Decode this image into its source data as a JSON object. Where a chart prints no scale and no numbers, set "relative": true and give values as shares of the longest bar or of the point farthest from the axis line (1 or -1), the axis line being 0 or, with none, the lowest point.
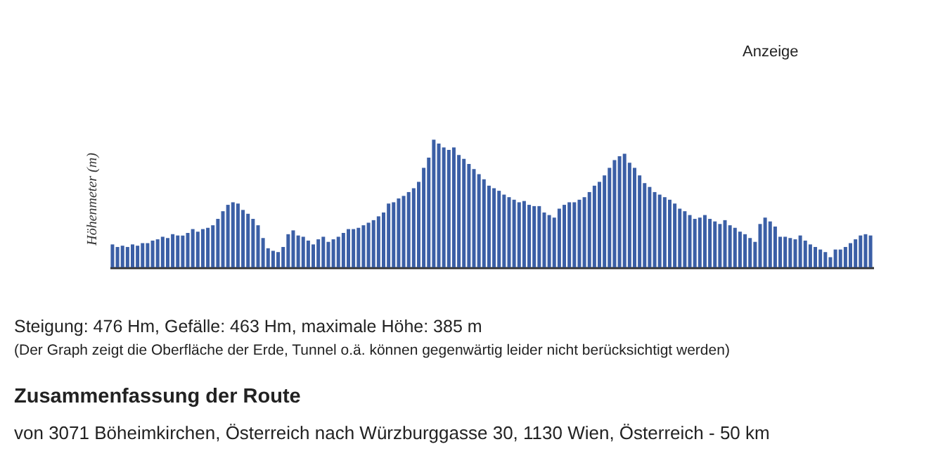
{
  "chart_data": {
    "type": "bar",
    "ylabel": "Höhenmeter (m)",
    "relative": true,
    "color": "#3b5fa6",
    "categories": [
      null,
      null,
      null,
      null,
      null,
      null,
      null,
      null,
      null,
      null,
      null,
      null,
      null,
      null,
      null,
      null,
      null,
      null,
      null,
      null,
      null,
      null,
      null,
      null,
      null,
      null,
      null,
      null,
      null,
      null,
      null,
      null,
      null,
      null,
      null,
      null,
      null,
      null,
      null,
      null,
      null,
      null,
      null,
      null,
      null,
      null,
      null,
      null,
      null,
      null,
      null,
      null,
      null,
      null,
      null,
      null,
      null,
      null,
      null,
      null,
      null,
      null,
      null,
      null,
      null,
      null,
      null,
      null,
      null,
      null,
      null,
      null,
      null,
      null,
      null,
      null,
      null,
      null,
      null,
      null,
      null,
      null,
      null,
      null,
      null,
      null,
      null,
      null,
      null,
      null,
      null,
      null,
      null,
      null,
      null,
      null,
      null,
      null,
      null,
      null,
      null,
      null,
      null,
      null,
      null,
      null,
      null,
      null,
      null,
      null,
      null,
      null,
      null,
      null,
      null,
      null,
      null,
      null,
      null,
      null,
      null,
      null,
      null,
      null,
      null,
      null,
      null,
      null,
      null,
      null,
      null,
      null,
      null,
      null,
      null,
      null,
      null,
      null,
      null,
      null,
      null,
      null,
      null,
      null,
      null,
      null,
      null,
      null,
      null,
      null,
      null,
      null
    ],
    "values": [
      0.18,
      0.16,
      0.17,
      0.16,
      0.18,
      0.17,
      0.19,
      0.19,
      0.21,
      0.22,
      0.24,
      0.23,
      0.26,
      0.25,
      0.25,
      0.27,
      0.3,
      0.28,
      0.3,
      0.31,
      0.33,
      0.38,
      0.44,
      0.49,
      0.51,
      0.5,
      0.45,
      0.42,
      0.38,
      0.33,
      0.23,
      0.15,
      0.13,
      0.12,
      0.16,
      0.26,
      0.29,
      0.25,
      0.24,
      0.21,
      0.18,
      0.22,
      0.24,
      0.2,
      0.22,
      0.24,
      0.27,
      0.3,
      0.3,
      0.31,
      0.33,
      0.35,
      0.37,
      0.4,
      0.43,
      0.5,
      0.51,
      0.54,
      0.56,
      0.59,
      0.62,
      0.67,
      0.78,
      0.86,
      1,
      0.97,
      0.94,
      0.92,
      0.94,
      0.88,
      0.85,
      0.81,
      0.77,
      0.73,
      0.69,
      0.64,
      0.62,
      0.6,
      0.57,
      0.55,
      0.53,
      0.51,
      0.52,
      0.49,
      0.48,
      0.48,
      0.43,
      0.41,
      0.39,
      0.46,
      0.49,
      0.51,
      0.51,
      0.53,
      0.55,
      0.59,
      0.64,
      0.67,
      0.72,
      0.78,
      0.84,
      0.87,
      0.89,
      0.82,
      0.78,
      0.72,
      0.66,
      0.63,
      0.59,
      0.57,
      0.55,
      0.53,
      0.5,
      0.46,
      0.44,
      0.41,
      0.38,
      0.39,
      0.41,
      0.38,
      0.36,
      0.34,
      0.37,
      0.33,
      0.31,
      0.28,
      0.26,
      0.23,
      0.2,
      0.34,
      0.39,
      0.36,
      0.32,
      0.24,
      0.24,
      0.23,
      0.22,
      0.25,
      0.21,
      0.18,
      0.16,
      0.14,
      0.12,
      0.08,
      0.14,
      0.14,
      0.16,
      0.19,
      0.22,
      0.25,
      0.26,
      0.25
    ],
    "annotations": [
      "Anzeige",
      "Steigung: 476 Hm, Gefälle: 463 Hm, maximale Höhe: 385 m",
      "(Der Graph zeigt die Oberfläche der Erde, Tunnel o.ä. können gegenwärtig leider nicht berücksichtigt werden)",
      "Zusammenfassung der Route",
      "von 3071 Böheimkirchen, Österreich nach Würzburggasse 30, 1130 Wien, Österreich - 50 km"
    ]
  }
}
